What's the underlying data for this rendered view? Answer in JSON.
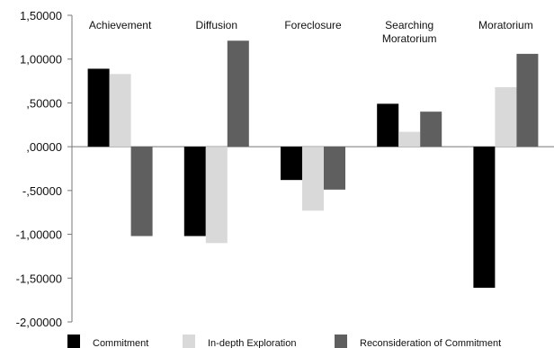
{
  "chart_data": {
    "type": "bar",
    "categories": [
      "Achievement",
      "Diffusion",
      "Foreclosure",
      "Searching Moratorium",
      "Moratorium"
    ],
    "category_labels": [
      [
        "Achievement"
      ],
      [
        "Diffusion"
      ],
      [
        "Foreclosure"
      ],
      [
        "Searching",
        "Moratorium"
      ],
      [
        "Moratorium"
      ]
    ],
    "series": [
      {
        "name": "Commitment",
        "color": "#000000",
        "values": [
          0.89,
          -1.02,
          -0.38,
          0.49,
          -1.61
        ]
      },
      {
        "name": "In-depth Exploration",
        "color": "#d9d9d9",
        "values": [
          0.83,
          -1.1,
          -0.73,
          0.17,
          0.68
        ]
      },
      {
        "name": "Reconsideration of Commitment",
        "color": "#5f5f5f",
        "values": [
          -1.02,
          1.21,
          -0.49,
          0.4,
          1.06
        ]
      }
    ],
    "yticks": [
      1.5,
      1.0,
      0.5,
      0.0,
      -0.5,
      -1.0,
      -1.5,
      -2.0
    ],
    "ytick_labels": [
      "1,50000",
      "1,00000",
      ",50000",
      ",00000",
      "-,50000",
      "-1,00000",
      "-1,50000",
      "-2,00000"
    ],
    "ylim": [
      -2.0,
      1.5
    ],
    "grid": false,
    "legend_position": "bottom",
    "title": "",
    "xlabel": "",
    "ylabel": ""
  }
}
